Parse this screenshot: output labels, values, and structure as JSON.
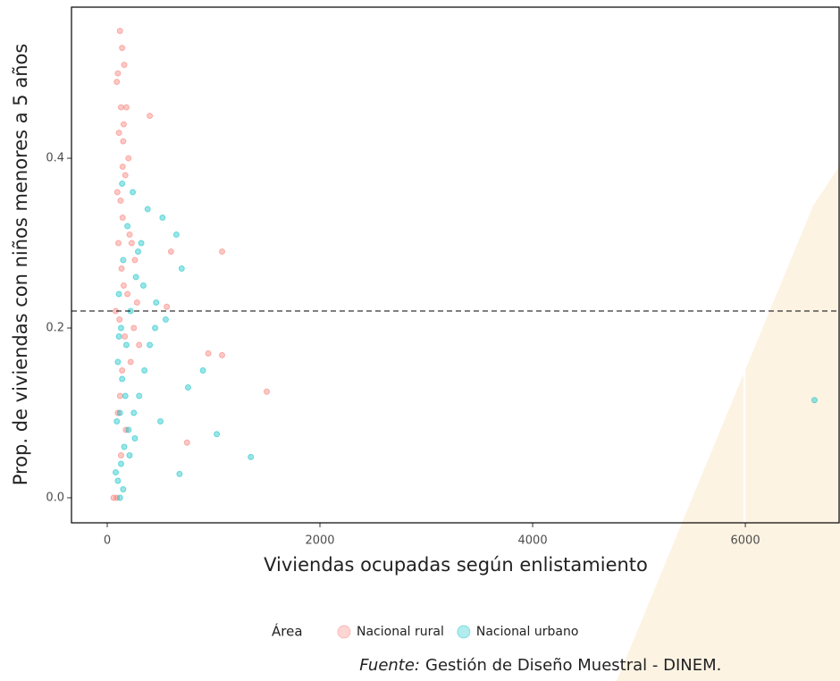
{
  "chart_data": {
    "type": "scatter",
    "x_label": "Viviendas ocupadas según enlistamiento",
    "y_label": "Prop. de viviendas con niños menores a 5 años",
    "legend_title": "Área",
    "caption_prefix": "Fuente:",
    "caption": "Gestión de Diseño Muestral - DINEM.",
    "xlim": [
      -336,
      6890
    ],
    "ylim": [
      -0.0295,
      0.578
    ],
    "xticks": [
      0,
      2000,
      4000,
      6000
    ],
    "yticks": [
      {
        "value": 0,
        "label": "0.0"
      },
      0.2,
      0.4
    ],
    "hline": 0.22,
    "grid": false,
    "legend": "bottom",
    "series": [
      {
        "name": "Nacional rural",
        "color": "#F8766D",
        "x": [
          120,
          140,
          100,
          160,
          130,
          90,
          180,
          110,
          150,
          200,
          170,
          95,
          125,
          145,
          210,
          230,
          260,
          105,
          135,
          155,
          190,
          80,
          115,
          165,
          250,
          300,
          140,
          120,
          100,
          175,
          220,
          280,
          130,
          60,
          90,
          400,
          1080,
          1500,
          950,
          1080,
          750,
          600,
          560,
          145,
          155
        ],
        "y": [
          0.55,
          0.53,
          0.5,
          0.51,
          0.46,
          0.49,
          0.46,
          0.43,
          0.42,
          0.4,
          0.38,
          0.36,
          0.35,
          0.33,
          0.31,
          0.3,
          0.28,
          0.3,
          0.27,
          0.25,
          0.24,
          0.22,
          0.21,
          0.19,
          0.2,
          0.18,
          0.15,
          0.12,
          0.1,
          0.08,
          0.16,
          0.23,
          0.05,
          0.0,
          0.0,
          0.45,
          0.29,
          0.125,
          0.17,
          0.168,
          0.065,
          0.29,
          0.225,
          0.39,
          0.44
        ]
      },
      {
        "name": "Nacional urbano",
        "color": "#00BFC4",
        "x": [
          100,
          130,
          160,
          200,
          250,
          300,
          350,
          400,
          450,
          120,
          140,
          180,
          220,
          270,
          320,
          380,
          110,
          150,
          190,
          240,
          290,
          340,
          100,
          130,
          170,
          210,
          260,
          90,
          120,
          150,
          80,
          110,
          140,
          520,
          650,
          700,
          760,
          900,
          1030,
          1350,
          6650,
          680,
          460,
          500,
          550
        ],
        "y": [
          0.02,
          0.04,
          0.06,
          0.08,
          0.1,
          0.12,
          0.15,
          0.18,
          0.2,
          0.1,
          0.14,
          0.18,
          0.22,
          0.26,
          0.3,
          0.34,
          0.24,
          0.28,
          0.32,
          0.36,
          0.29,
          0.25,
          0.16,
          0.2,
          0.12,
          0.05,
          0.07,
          0.09,
          0.0,
          0.01,
          0.03,
          0.19,
          0.37,
          0.33,
          0.31,
          0.27,
          0.13,
          0.15,
          0.075,
          0.048,
          0.115,
          0.028,
          0.23,
          0.09,
          0.21
        ]
      }
    ]
  }
}
